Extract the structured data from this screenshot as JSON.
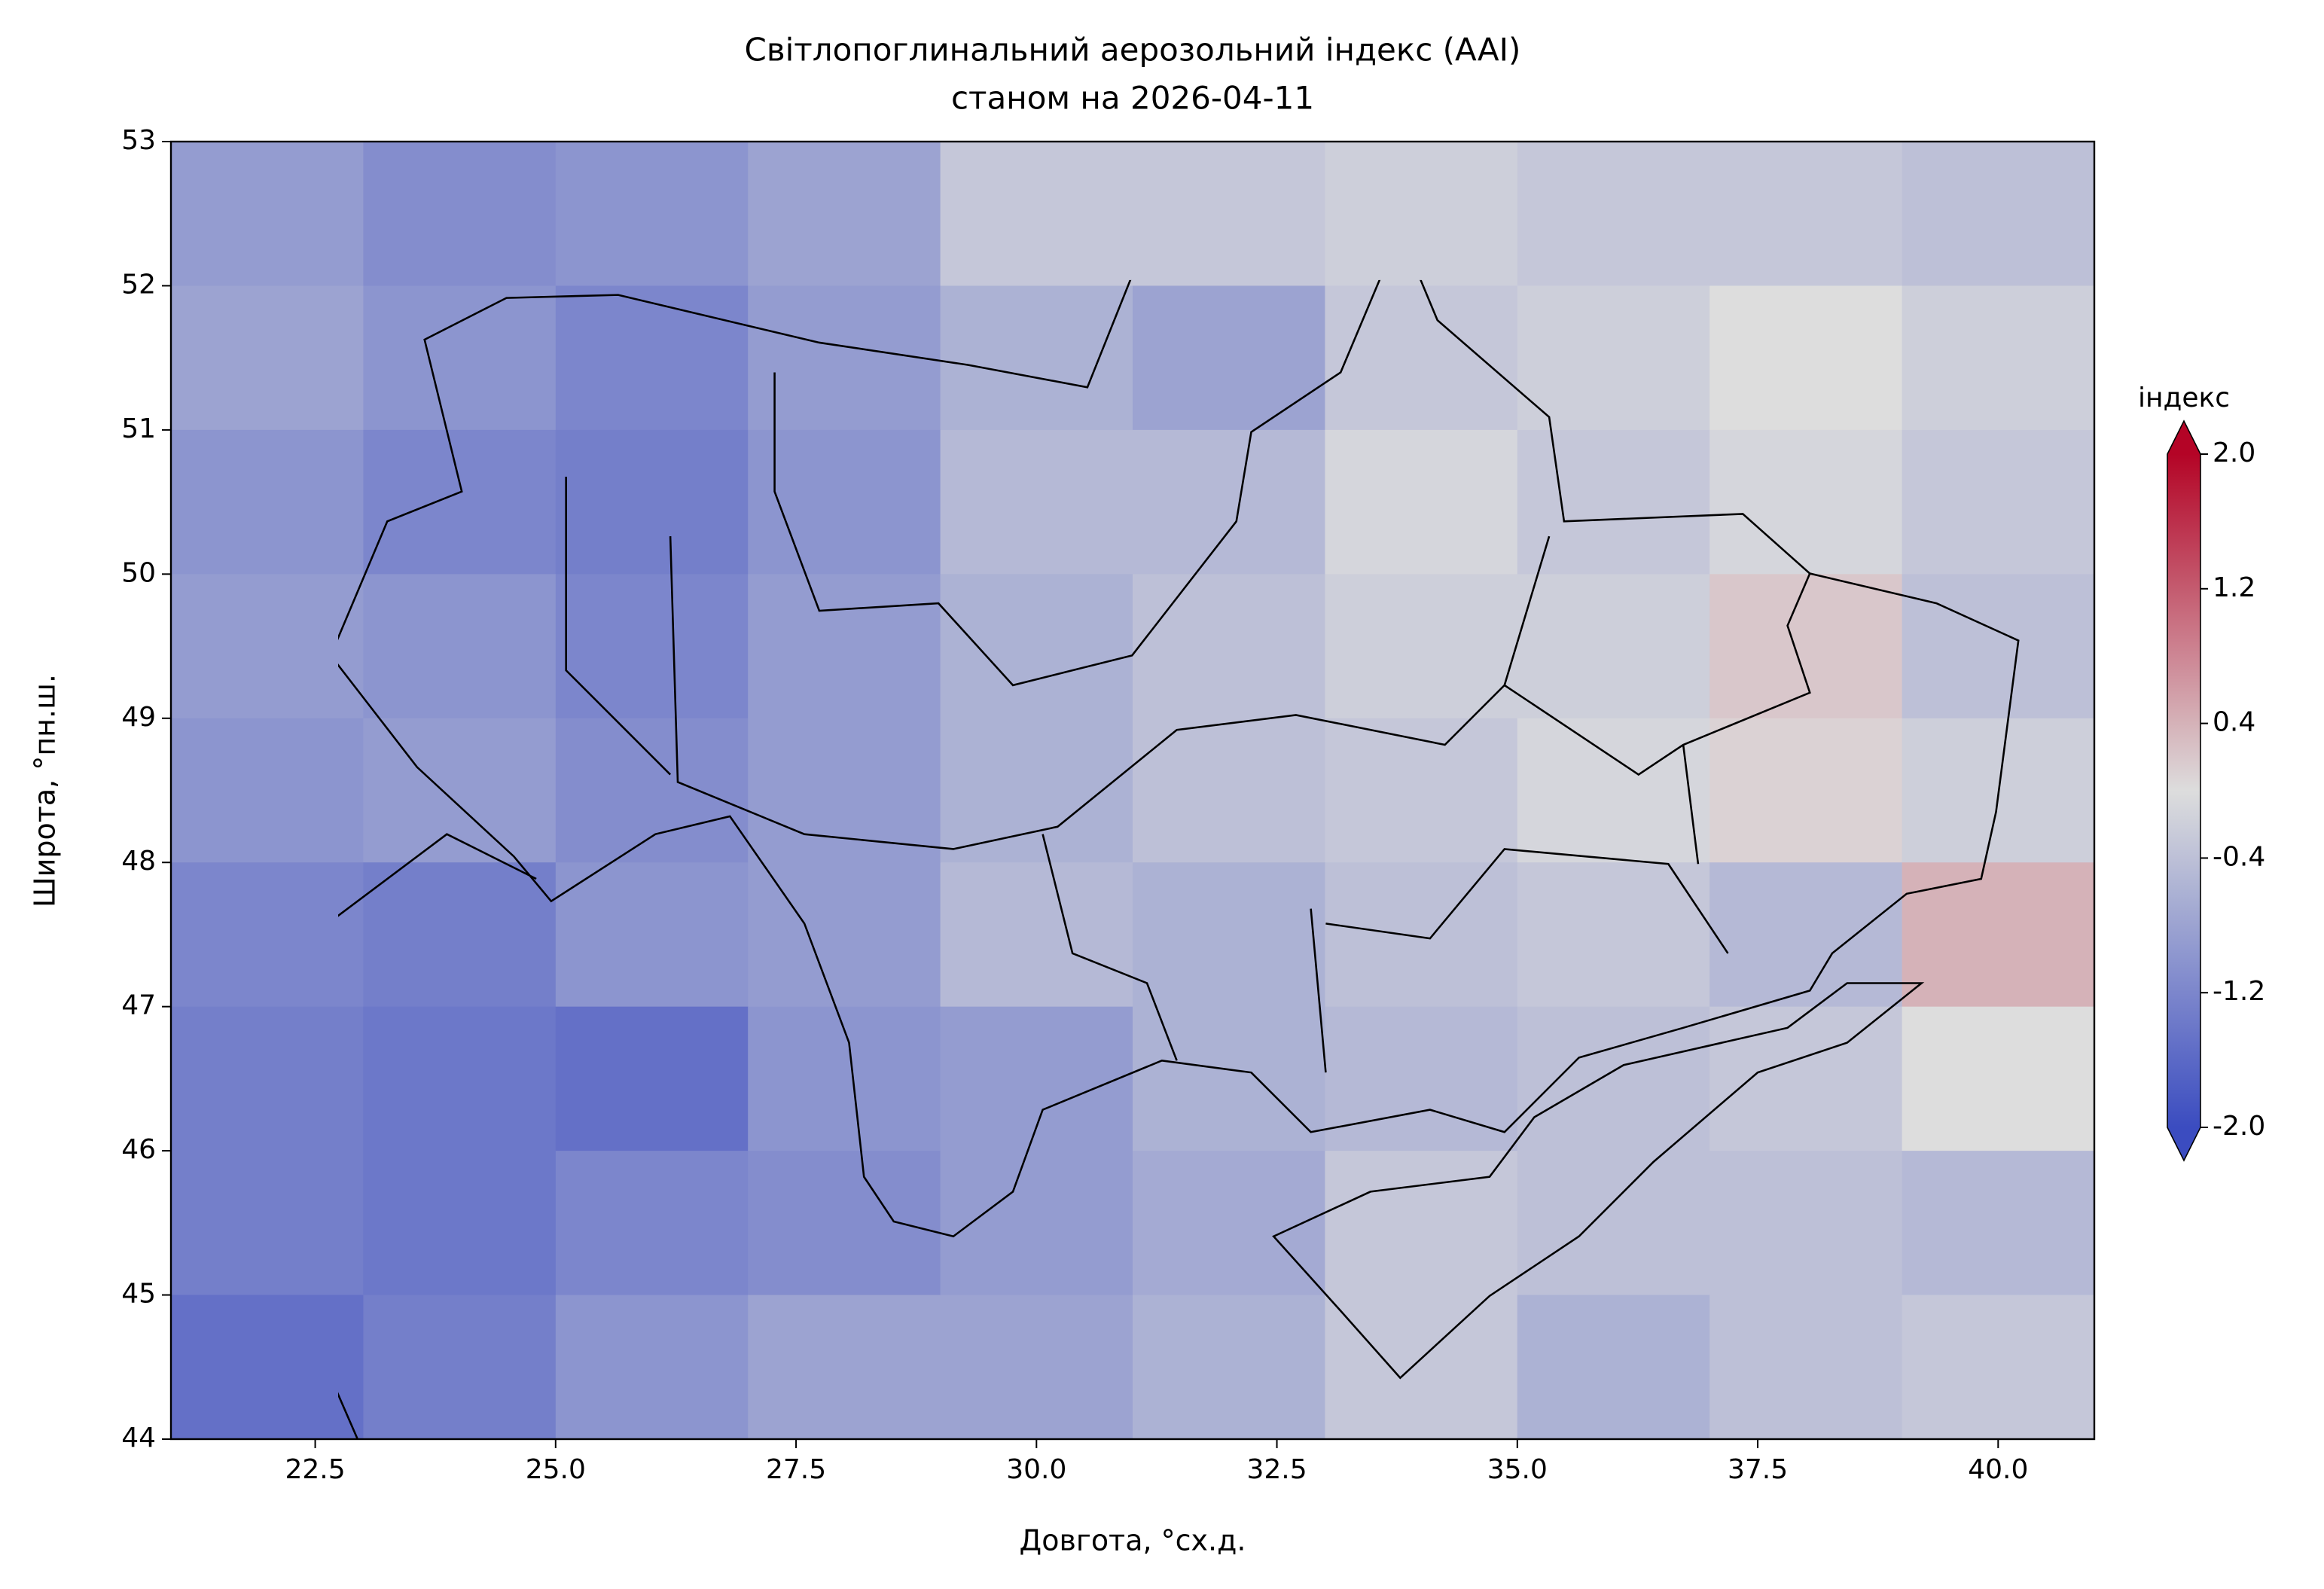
{
  "chart_data": {
    "type": "heatmap",
    "title": "Світлопоглинальний аерозольний індекс (AAI)",
    "subtitle": "станом на 2026-04-11",
    "x_label": "Довгота, °сх.д.",
    "y_label": "Широта, °пн.ш.",
    "colorbar_label": "індекс",
    "colormap": "coolwarm",
    "clim": [
      -2,
      2
    ],
    "cticks": [
      {
        "value": -2,
        "label": "-2.0"
      },
      -1.2,
      -0.4,
      0.4,
      1.2,
      {
        "value": 2,
        "label": "2.0"
      }
    ],
    "xlim": [
      21,
      41
    ],
    "ylim": [
      44,
      53
    ],
    "xticks": [
      22.5,
      {
        "value": 25,
        "label": "25.0"
      },
      27.5,
      {
        "value": 30,
        "label": "30.0"
      },
      32.5,
      {
        "value": 35,
        "label": "35.0"
      },
      37.5,
      {
        "value": 40,
        "label": "40.0"
      }
    ],
    "yticks": [
      44,
      45,
      46,
      47,
      48,
      49,
      50,
      51,
      52,
      53
    ],
    "x": [
      22,
      24,
      26,
      28,
      30,
      32,
      34,
      36,
      38,
      40
    ],
    "y": [
      52.5,
      51.5,
      50.5,
      49.5,
      48.5,
      47.5,
      46.5,
      45.5,
      44.5
    ],
    "z": [
      [
        -0.9,
        -1.1,
        -1.0,
        -0.8,
        -0.3,
        -0.3,
        -0.2,
        -0.3,
        -0.3,
        -0.4
      ],
      [
        -0.8,
        -1.0,
        -1.2,
        -0.9,
        -0.6,
        -0.8,
        -0.3,
        -0.2,
        0.0,
        -0.2
      ],
      [
        -1.0,
        -1.2,
        -1.3,
        -1.0,
        -0.5,
        -0.5,
        -0.1,
        -0.3,
        -0.1,
        -0.3
      ],
      [
        -0.9,
        -1.0,
        -1.2,
        -0.9,
        -0.6,
        -0.4,
        -0.2,
        -0.2,
        0.2,
        -0.4
      ],
      [
        -1.0,
        -0.9,
        -1.1,
        -0.9,
        -0.6,
        -0.4,
        -0.3,
        -0.1,
        0.1,
        -0.2
      ],
      [
        -1.2,
        -1.3,
        -1.0,
        -0.9,
        -0.5,
        -0.6,
        -0.4,
        -0.3,
        -0.5,
        0.4
      ],
      [
        -1.3,
        -1.4,
        -1.5,
        -1.0,
        -0.9,
        -0.6,
        -0.5,
        -0.4,
        -0.3,
        0.0
      ],
      [
        -1.3,
        -1.4,
        -1.2,
        -1.1,
        -0.9,
        -0.7,
        -0.3,
        -0.4,
        -0.4,
        -0.5
      ],
      [
        -1.5,
        -1.3,
        -1.0,
        -0.8,
        -0.8,
        -0.6,
        -0.3,
        -0.6,
        -0.4,
        -0.3
      ]
    ]
  }
}
